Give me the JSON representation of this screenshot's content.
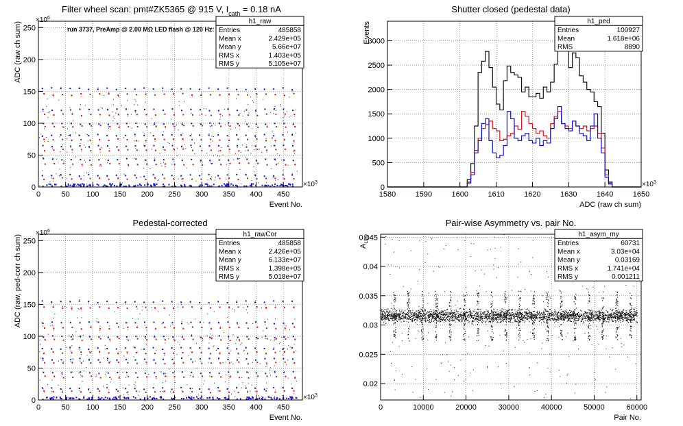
{
  "chart_data": [
    {
      "type": "scatter",
      "title": "Filter wheel scan: pmt#ZK5365 @   915 V, I",
      "title_sub": "cath",
      "title_tail": " = 0.18 nA",
      "annotation": "run 3737, PreAmp @ 2.00 MΩ LED flash @  120 Hz:",
      "xlabel": "Event No.",
      "ylabel": "ADC (raw ch sum)",
      "x_exponent": "×10",
      "x_exponent_power": "3",
      "y_exponent": "×10",
      "y_exponent_power": "6",
      "xlim": [
        0,
        485
      ],
      "ylim": [
        0,
        260
      ],
      "x_ticks": [
        0,
        50,
        100,
        150,
        200,
        250,
        300,
        350,
        400,
        450
      ],
      "y_ticks": [
        0,
        50,
        100,
        150,
        200,
        250
      ],
      "grid": true,
      "colors": {
        "blue": "#1010cc",
        "red": "#dd1111",
        "black": "#111111"
      },
      "series": [
        {
          "color": "blue",
          "levels": [
            154,
            121,
            99,
            81,
            64,
            43,
            18,
            2
          ]
        },
        {
          "color": "red",
          "levels": [
            145,
            113,
            95,
            74,
            58,
            36,
            13
          ]
        }
      ],
      "stats": {
        "name": "h1_raw",
        "rows": [
          {
            "label": "Entries",
            "value": "485858"
          },
          {
            "label": "Mean x",
            "value": "2.429e+05"
          },
          {
            "label": "Mean y",
            "value": "5.66e+07"
          },
          {
            "label": "RMS x",
            "value": "1.403e+05"
          },
          {
            "label": "RMS y",
            "value": "5.105e+07"
          }
        ]
      }
    },
    {
      "type": "line",
      "title": "Shutter closed (pedestal data)",
      "xlabel": "ADC (raw ch sum)",
      "ylabel": "Events",
      "x_exponent": "×10",
      "x_exponent_power": "3",
      "xlim": [
        1580,
        1650
      ],
      "ylim": [
        0,
        3400
      ],
      "x_ticks": [
        1580,
        1590,
        1600,
        1610,
        1620,
        1630,
        1640,
        1650
      ],
      "y_ticks": [
        0,
        500,
        1000,
        1500,
        2000,
        2500,
        3000
      ],
      "grid": true,
      "colors": {
        "black": "#111111",
        "red": "#dd1111",
        "blue": "#1010cc"
      },
      "bin_start": 1580,
      "bin_width": 1,
      "series": [
        {
          "color": "black",
          "values": [
            0,
            0,
            0,
            0,
            0,
            0,
            0,
            0,
            0,
            0,
            0,
            0,
            0,
            0,
            0,
            0,
            0,
            0,
            0,
            0,
            0,
            0,
            150,
            480,
            1250,
            2350,
            2580,
            2780,
            2450,
            2050,
            1700,
            1580,
            2180,
            2480,
            2350,
            2300,
            2250,
            1950,
            2050,
            1850,
            1850,
            1920,
            1820,
            2050,
            1950,
            2150,
            2520,
            2850,
            3250,
            2950,
            2450,
            2750,
            2650,
            2280,
            2150,
            2000,
            1950,
            1750,
            1650,
            1100,
            350,
            100,
            0,
            0,
            0,
            0,
            0,
            0,
            0,
            0
          ]
        },
        {
          "color": "red",
          "values": [
            0,
            0,
            0,
            0,
            0,
            0,
            0,
            0,
            0,
            0,
            0,
            0,
            0,
            0,
            0,
            0,
            0,
            0,
            0,
            0,
            0,
            0,
            100,
            300,
            750,
            1000,
            1200,
            1280,
            1350,
            1200,
            1150,
            950,
            980,
            1050,
            1100,
            1250,
            1180,
            1550,
            1450,
            1300,
            1200,
            1100,
            1150,
            1050,
            1000,
            1300,
            1450,
            1550,
            1300,
            1250,
            1200,
            1350,
            1250,
            1200,
            1250,
            1150,
            1200,
            1250,
            1100,
            800,
            250,
            80,
            0,
            0,
            0,
            0,
            0,
            0,
            0,
            0
          ]
        },
        {
          "color": "blue",
          "values": [
            0,
            0,
            0,
            0,
            0,
            0,
            0,
            0,
            0,
            0,
            0,
            0,
            0,
            0,
            0,
            0,
            0,
            0,
            0,
            0,
            0,
            0,
            80,
            250,
            700,
            950,
            1300,
            1400,
            950,
            700,
            600,
            650,
            850,
            1550,
            1400,
            1000,
            950,
            1050,
            1100,
            950,
            900,
            1000,
            850,
            950,
            900,
            1200,
            1400,
            1650,
            1300,
            1200,
            1150,
            1350,
            1250,
            1100,
            1050,
            950,
            1250,
            1500,
            1000,
            700,
            200,
            60,
            0,
            0,
            0,
            0,
            0,
            0,
            0,
            0
          ]
        }
      ],
      "stats": {
        "name": "h1_ped",
        "rows": [
          {
            "label": "Entries",
            "value": "100927"
          },
          {
            "label": "Mean",
            "value": "1.618e+06"
          },
          {
            "label": "RMS",
            "value": "8890"
          }
        ]
      }
    },
    {
      "type": "scatter",
      "title": "Pedestal-corrected",
      "xlabel": "Event No.",
      "ylabel": "ADC (raw, ped-corr ch sum)",
      "x_exponent": "×10",
      "x_exponent_power": "3",
      "y_exponent": "×10",
      "y_exponent_power": "6",
      "xlim": [
        0,
        485
      ],
      "ylim": [
        0,
        260
      ],
      "x_ticks": [
        0,
        50,
        100,
        150,
        200,
        250,
        300,
        350,
        400,
        450
      ],
      "y_ticks": [
        0,
        50,
        100,
        150,
        200,
        250
      ],
      "grid": true,
      "colors": {
        "blue": "#1010cc",
        "red": "#dd1111",
        "black": "#111111"
      },
      "series": [
        {
          "color": "blue",
          "levels": [
            154,
            121,
            99,
            81,
            64,
            43,
            18,
            2
          ]
        },
        {
          "color": "red",
          "levels": [
            145,
            113,
            95,
            74,
            58,
            36,
            13
          ]
        }
      ],
      "stats": {
        "name": "h1_rawCor",
        "rows": [
          {
            "label": "Entries",
            "value": "485858"
          },
          {
            "label": "Mean x",
            "value": "2.426e+05"
          },
          {
            "label": "Mean y",
            "value": "6.133e+07"
          },
          {
            "label": "RMS x",
            "value": "1.398e+05"
          },
          {
            "label": "RMS y",
            "value": "5.018e+07"
          }
        ]
      }
    },
    {
      "type": "scatter",
      "title": "Pair-wise Asymmetry vs. pair No.",
      "xlabel": "Pair No.",
      "ylabel": "A",
      "ylabel_sub": "LED",
      "xlim": [
        0,
        61000
      ],
      "ylim": [
        0.0172,
        0.0455
      ],
      "x_ticks": [
        0,
        10000,
        20000,
        30000,
        40000,
        50000,
        60000
      ],
      "y_ticks": [
        0.02,
        0.025,
        0.03,
        0.035,
        0.04,
        0.045
      ],
      "grid": true,
      "colors": {
        "black": "#111111"
      },
      "band_center": 0.0316,
      "band_halfwidth": 0.0009,
      "spike_count": 18,
      "stats": {
        "name": "h1_asym_my",
        "rows": [
          {
            "label": "Entries",
            "value": "60731"
          },
          {
            "label": "Mean x",
            "value": "3.03e+04"
          },
          {
            "label": "Mean y",
            "value": "0.03169"
          },
          {
            "label": "RMS x",
            "value": "1.741e+04"
          },
          {
            "label": "RMS y",
            "value": "0.001211"
          }
        ]
      }
    }
  ]
}
